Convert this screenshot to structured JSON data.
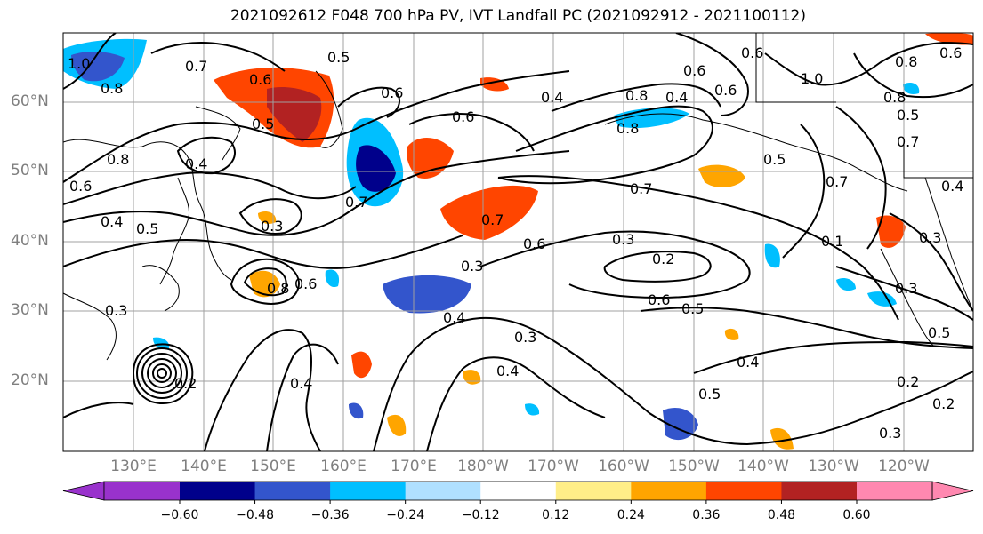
{
  "title": "2021092612 F048 700 hPa PV, IVT Landfall PC (2021092912 - 2021100112)",
  "map": {
    "lat_labels": [
      "60°N",
      "50°N",
      "40°N",
      "30°N",
      "20°N"
    ],
    "lon_labels": [
      "130°E",
      "140°E",
      "150°E",
      "160°E",
      "170°E",
      "180°W",
      "170°W",
      "160°W",
      "150°W",
      "140°W",
      "130°W",
      "120°W"
    ],
    "contour_labels": [
      "1.0",
      "0.8",
      "0.7",
      "0.6",
      "0.5",
      "0.4",
      "0.8",
      "0.6",
      "0.5",
      "0.4",
      "0.3",
      "0.6",
      "0.7",
      "0.6",
      "0.8",
      "0.6",
      "0.7",
      "0.3",
      "0.2",
      "0.6",
      "0.5",
      "0.3",
      "0.4",
      "0.4",
      "0.3",
      "0.4",
      "0.5",
      "0.2",
      "0.3",
      "0.5",
      "0.4",
      "0.6",
      "0.8",
      "0.4",
      "0.5",
      "0.7",
      "1.0",
      "0.8",
      "0.6",
      "0.5",
      "0.4",
      "0.1",
      "0.3",
      "0.2",
      "0.3",
      "0.2",
      "0.4",
      "0.6",
      "0.7",
      "0.6",
      "0.5",
      "0.8",
      "0.8",
      "0.6",
      "0.7",
      "0.3"
    ]
  },
  "colorbar": {
    "tick_labels": [
      "−0.60",
      "−0.48",
      "−0.36",
      "−0.24",
      "−0.12",
      "0.12",
      "0.24",
      "0.36",
      "0.48",
      "0.60"
    ],
    "colors": [
      "#9932cc",
      "#00008b",
      "#3355cc",
      "#00bfff",
      "#b0e0ff",
      "#ffffff",
      "#ffee88",
      "#ffa500",
      "#ff4500",
      "#b22222",
      "#ff88b0"
    ]
  }
}
